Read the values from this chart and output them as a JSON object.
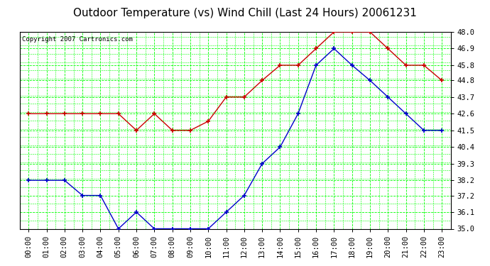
{
  "title": "Outdoor Temperature (vs) Wind Chill (Last 24 Hours) 20061231",
  "copyright": "Copyright 2007 Cartronics.com",
  "x_labels": [
    "00:00",
    "01:00",
    "02:00",
    "03:00",
    "04:00",
    "05:00",
    "06:00",
    "07:00",
    "08:00",
    "09:00",
    "10:00",
    "11:00",
    "12:00",
    "13:00",
    "14:00",
    "15:00",
    "16:00",
    "17:00",
    "18:00",
    "19:00",
    "20:00",
    "21:00",
    "22:00",
    "23:00"
  ],
  "outdoor_temp": [
    42.6,
    42.6,
    42.6,
    42.6,
    42.6,
    42.6,
    41.5,
    42.6,
    41.5,
    41.5,
    42.1,
    43.7,
    43.7,
    44.8,
    45.8,
    45.8,
    46.9,
    48.0,
    48.0,
    48.0,
    46.9,
    45.8,
    45.8,
    44.8
  ],
  "wind_chill": [
    38.2,
    38.2,
    38.2,
    37.2,
    37.2,
    35.0,
    36.1,
    35.0,
    35.0,
    35.0,
    35.0,
    36.1,
    37.2,
    39.3,
    40.4,
    42.6,
    45.8,
    46.9,
    45.8,
    44.8,
    43.7,
    42.6,
    41.5,
    41.5
  ],
  "ylim": [
    35.0,
    48.0
  ],
  "yticks": [
    35.0,
    36.1,
    37.2,
    38.2,
    39.3,
    40.4,
    41.5,
    42.6,
    43.7,
    44.8,
    45.8,
    46.9,
    48.0
  ],
  "bg_color": "#ffffff",
  "grid_major_color": "#00ff00",
  "grid_minor_color": "#00ff00",
  "temp_color": "#cc0000",
  "chill_color": "#0000cc",
  "title_fontsize": 11,
  "copyright_fontsize": 6.5,
  "tick_fontsize": 7.5
}
